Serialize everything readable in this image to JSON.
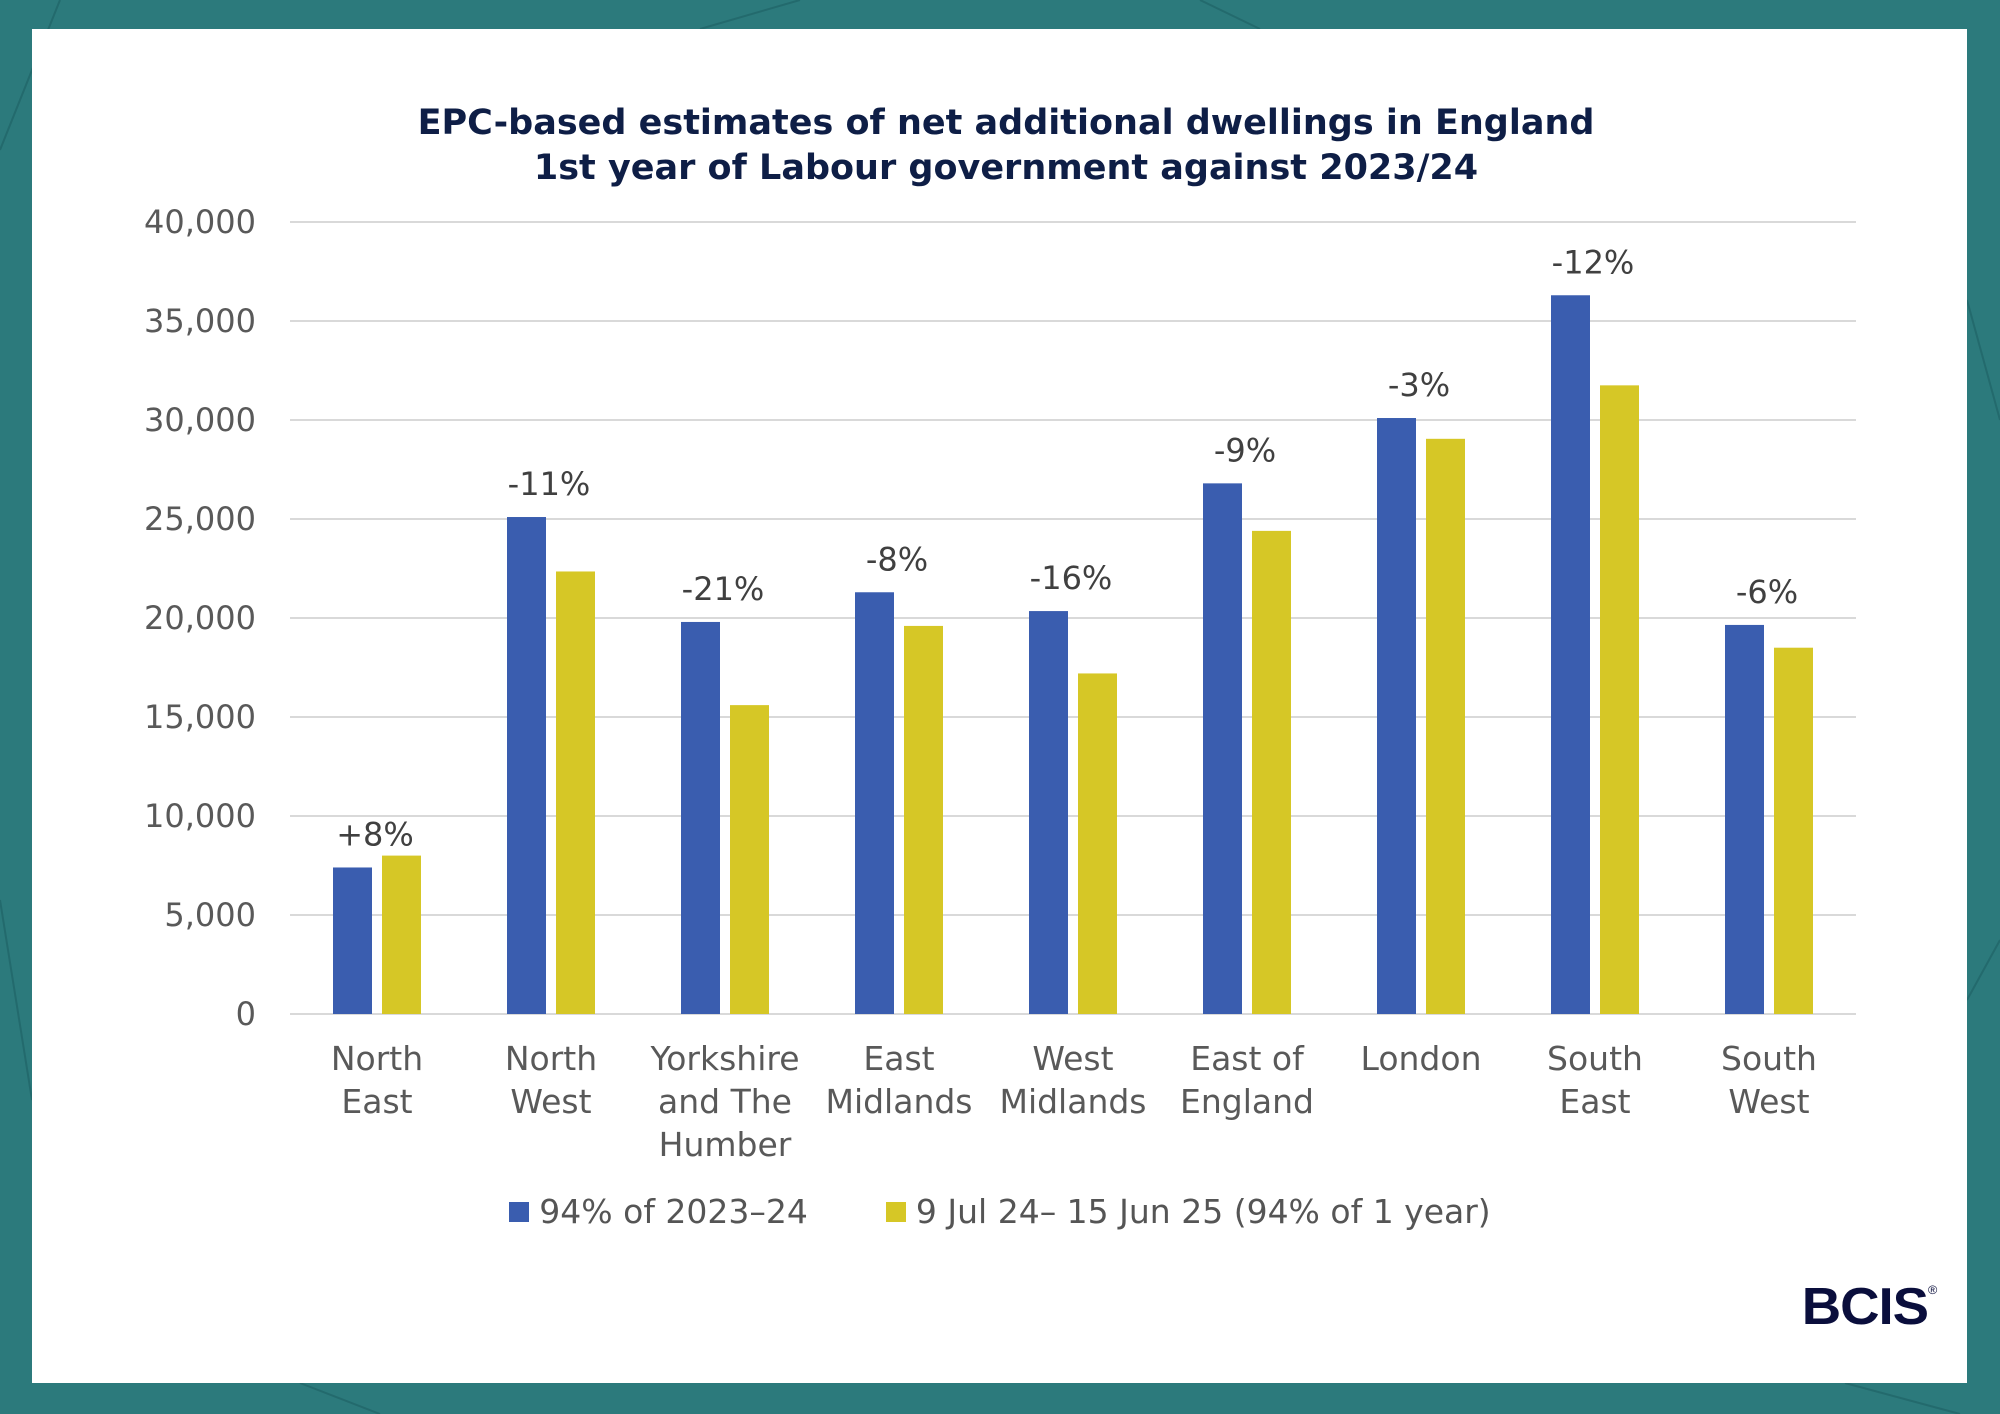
{
  "logo": {
    "text": "BCIS",
    "mark": "®"
  },
  "colors": {
    "series1": "#3a5daf",
    "series2": "#d6c726",
    "background": "#2c7a7c",
    "title": "#0e1e46"
  },
  "chart_data": {
    "type": "bar",
    "title": "EPC-based estimates of net additional dwellings in England",
    "subtitle": "1st year of Labour government against 2023/24",
    "xlabel": "",
    "ylabel": "",
    "ylim": [
      0,
      40000
    ],
    "yticks": [
      0,
      5000,
      10000,
      15000,
      20000,
      25000,
      30000,
      35000,
      40000
    ],
    "ytick_labels": [
      "0",
      "5,000",
      "10,000",
      "15,000",
      "20,000",
      "25,000",
      "30,000",
      "35,000",
      "40,000"
    ],
    "grid": true,
    "legend_position": "bottom",
    "categories": [
      [
        "North",
        "East"
      ],
      [
        "North",
        "West"
      ],
      [
        "Yorkshire",
        "and The",
        "Humber"
      ],
      [
        "East",
        "Midlands"
      ],
      [
        "West",
        "Midlands"
      ],
      [
        "East of",
        "England"
      ],
      [
        "London"
      ],
      [
        "South",
        "East"
      ],
      [
        "South",
        "West"
      ]
    ],
    "series": [
      {
        "name": "94% of 2023–24",
        "values": [
          7400,
          25100,
          19800,
          21300,
          20350,
          26800,
          30100,
          36300,
          19650
        ]
      },
      {
        "name": "9 Jul 24– 15 Jun 25 (94% of 1 year)",
        "values": [
          8000,
          22350,
          15600,
          19600,
          17200,
          24400,
          29050,
          31750,
          18500
        ]
      }
    ],
    "annotations": [
      "+8%",
      "-11%",
      "-21%",
      "-8%",
      "-16%",
      "-9%",
      "-3%",
      "-12%",
      "-6%"
    ]
  }
}
